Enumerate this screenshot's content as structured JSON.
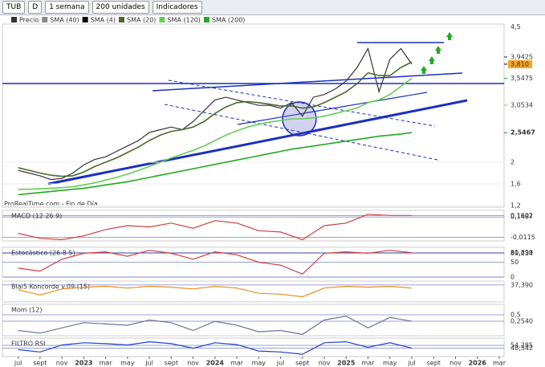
{
  "toolbar": {
    "symbol": "TUB",
    "period_type": "D",
    "period": "1 semana",
    "units": "200 unidades",
    "indicators": "Indicadores"
  },
  "chart_data": [
    {
      "type": "line",
      "source_note": "ProRealTime.com - Fin de Día",
      "legend_extra": [
        {
          "name": "SMA (40)",
          "color": "#888888"
        },
        {
          "name": "SMA (4)",
          "color": "#000000"
        }
      ],
      "x": [
        0,
        1,
        2,
        3,
        4,
        5,
        6,
        7,
        8,
        9,
        10,
        11,
        12,
        13,
        14,
        15,
        16,
        17,
        18,
        19,
        20,
        21,
        22,
        23,
        24,
        25,
        26,
        27,
        28,
        29,
        30,
        31,
        32,
        33,
        34,
        35,
        36
      ],
      "series": [
        {
          "name": "Precio",
          "color": "#333333",
          "values": [
            1.85,
            1.8,
            1.75,
            1.68,
            1.7,
            1.8,
            1.95,
            2.05,
            2.1,
            2.2,
            2.3,
            2.4,
            2.55,
            2.6,
            2.65,
            2.6,
            2.75,
            2.95,
            3.15,
            3.2,
            3.15,
            3.1,
            3.05,
            3.05,
            3.0,
            3.1,
            2.85,
            3.2,
            3.25,
            3.35,
            3.5,
            3.75,
            4.1,
            3.3,
            3.9,
            4.1,
            3.81
          ]
        },
        {
          "name": "SMA (20)",
          "color": "#4a6b2a",
          "values": [
            1.9,
            1.85,
            1.8,
            1.76,
            1.74,
            1.75,
            1.82,
            1.92,
            2.0,
            2.08,
            2.18,
            2.28,
            2.4,
            2.5,
            2.57,
            2.6,
            2.65,
            2.75,
            2.9,
            3.02,
            3.1,
            3.12,
            3.1,
            3.07,
            3.04,
            3.04,
            3.0,
            3.02,
            3.1,
            3.2,
            3.3,
            3.45,
            3.65,
            3.6,
            3.6,
            3.75,
            3.85
          ]
        },
        {
          "name": "SMA (120)",
          "color": "#66cc55",
          "values": [
            1.5,
            1.5,
            1.51,
            1.52,
            1.53,
            1.55,
            1.58,
            1.62,
            1.67,
            1.72,
            1.78,
            1.85,
            1.92,
            2.0,
            2.08,
            2.15,
            2.22,
            2.3,
            2.4,
            2.5,
            2.58,
            2.65,
            2.7,
            2.74,
            2.77,
            2.8,
            2.8,
            2.82,
            2.85,
            2.9,
            2.95,
            3.0,
            3.1,
            3.15,
            3.25,
            3.4,
            3.5475
          ]
        },
        {
          "name": "SMA (200)",
          "color": "#22aa22",
          "values": [
            1.4,
            1.42,
            1.44,
            1.46,
            1.48,
            1.5,
            1.52,
            1.55,
            1.58,
            1.61,
            1.64,
            1.68,
            1.72,
            1.76,
            1.8,
            1.84,
            1.88,
            1.92,
            1.96,
            2.0,
            2.04,
            2.08,
            2.12,
            2.16,
            2.2,
            2.24,
            2.27,
            2.3,
            2.33,
            2.36,
            2.39,
            2.42,
            2.45,
            2.48,
            2.5,
            2.52,
            2.5467
          ]
        }
      ],
      "xlim": [
        -1,
        44
      ],
      "xticks": [
        {
          "value": 0,
          "label": "jul"
        },
        {
          "value": 2,
          "label": "sept"
        },
        {
          "value": 4,
          "label": "nov"
        },
        {
          "value": 6,
          "label": "2023"
        },
        {
          "value": 8,
          "label": "mar"
        },
        {
          "value": 10,
          "label": "may"
        },
        {
          "value": 12,
          "label": "jul"
        },
        {
          "value": 14,
          "label": "sept"
        },
        {
          "value": 16,
          "label": "nov"
        },
        {
          "value": 18,
          "label": "2024"
        },
        {
          "value": 20,
          "label": "mar"
        },
        {
          "value": 22,
          "label": "may"
        },
        {
          "value": 24,
          "label": "jul"
        },
        {
          "value": 26,
          "label": "sept"
        },
        {
          "value": 28,
          "label": "nov"
        },
        {
          "value": 30,
          "label": "2025"
        },
        {
          "value": 32,
          "label": "mar"
        },
        {
          "value": 34,
          "label": "may"
        },
        {
          "value": 36,
          "label": "jul"
        },
        {
          "value": 38,
          "label": "sept"
        },
        {
          "value": 40,
          "label": "nov"
        },
        {
          "value": 42,
          "label": "2026"
        },
        {
          "value": 44,
          "label": "mar"
        }
      ],
      "ylim": [
        1.17,
        4.55
      ],
      "yticks": [
        {
          "value": 4.5,
          "label": "4,5"
        },
        2,
        {
          "value": 1.6,
          "label": "1,6"
        },
        {
          "value": 1.2,
          "label": "1,2"
        }
      ],
      "markers": [
        {
          "value": 3.9425,
          "label": "3,9425",
          "color": "#222222"
        },
        {
          "value": 3.81,
          "label": "3,810",
          "color": "#000000"
        },
        {
          "value": 3.5475,
          "label": "3,5475",
          "color": "#22aa22"
        },
        {
          "value": 3.0534,
          "label": "3,0534",
          "color": "#66cc55"
        },
        {
          "value": 2.5467,
          "label": "2,5467",
          "color": "#118811"
        }
      ]
    },
    {
      "type": "line",
      "title": "MACD (12 26 9)",
      "x": [
        0,
        2,
        4,
        6,
        8,
        10,
        12,
        14,
        16,
        18,
        20,
        22,
        24,
        26,
        28,
        30,
        32,
        34,
        36
      ],
      "series": [
        {
          "name": "MACD",
          "color": "#d04040",
          "values": [
            0.02,
            -0.02,
            -0.03,
            0.0,
            0.05,
            0.08,
            0.07,
            0.1,
            0.06,
            0.12,
            0.1,
            0.04,
            0.03,
            -0.03,
            0.08,
            0.1,
            0.17,
            0.16,
            0.16
          ]
        }
      ],
      "ylim": [
        -0.04,
        0.2
      ],
      "yticks": [
        {
          "value": 0.1602,
          "label": "0,1602"
        },
        {
          "value": 0.1487,
          "label": "0,1487"
        },
        {
          "value": -0.0115,
          "label": "-0,0115"
        }
      ]
    },
    {
      "type": "line",
      "title": "Estocástico (26 8 5)",
      "x": [
        0,
        2,
        4,
        6,
        8,
        10,
        12,
        14,
        16,
        18,
        20,
        22,
        24,
        26,
        28,
        30,
        32,
        34,
        36
      ],
      "series": [
        {
          "name": "Estocástico",
          "color": "#d04040",
          "values": [
            30,
            20,
            60,
            80,
            85,
            70,
            90,
            80,
            60,
            85,
            75,
            50,
            40,
            10,
            80,
            85,
            80,
            90,
            82
          ]
        }
      ],
      "ylim": [
        0,
        100
      ],
      "yticks": [
        {
          "value": 81.899,
          "label": "81,899"
        },
        {
          "value": 80.234,
          "label": "80,234"
        },
        50,
        0
      ]
    },
    {
      "type": "line",
      "title": "Blai5 Koncorde v.09 (15)",
      "x": [
        0,
        2,
        4,
        6,
        8,
        10,
        12,
        14,
        16,
        18,
        20,
        22,
        24,
        26,
        28,
        30,
        32,
        34,
        36
      ],
      "series": [
        {
          "name": "Koncorde",
          "color": "#f08c20",
          "values": [
            10,
            -20,
            15,
            25,
            30,
            20,
            30,
            25,
            15,
            30,
            20,
            -10,
            -15,
            -30,
            20,
            30,
            25,
            30,
            20
          ]
        }
      ],
      "ylim": [
        -60,
        60
      ],
      "yticks": [
        {
          "value": 37.39,
          "label": "37,390"
        }
      ]
    },
    {
      "type": "line",
      "title": "Mom (12)",
      "x": [
        0,
        2,
        4,
        6,
        8,
        10,
        12,
        14,
        16,
        18,
        20,
        22,
        24,
        26,
        28,
        30,
        32,
        34,
        36
      ],
      "series": [
        {
          "name": "Mom",
          "color": "#7070a0",
          "values": [
            -0.1,
            -0.2,
            0.0,
            0.2,
            0.15,
            0.1,
            0.3,
            0.2,
            -0.1,
            0.25,
            0.1,
            -0.15,
            -0.1,
            -0.25,
            0.3,
            0.45,
            0.0,
            0.4,
            0.254
          ]
        }
      ],
      "ylim": [
        -0.3,
        0.9
      ],
      "yticks": [
        {
          "value": 0.5,
          "label": "0,5"
        },
        {
          "value": 0.254,
          "label": "0,2540"
        }
      ]
    },
    {
      "type": "line",
      "title": "FILTRO RSI",
      "x": [
        0,
        2,
        4,
        6,
        8,
        10,
        12,
        14,
        16,
        18,
        20,
        22,
        24,
        26,
        28,
        30,
        32,
        34,
        36
      ],
      "series": [
        {
          "name": "RSI",
          "color": "#2040d0",
          "values": [
            45,
            40,
            55,
            60,
            58,
            55,
            62,
            58,
            48,
            60,
            56,
            42,
            40,
            35,
            60,
            62,
            50,
            60,
            48.342
          ]
        }
      ],
      "ylim": [
        30,
        70
      ],
      "yticks": [
        {
          "value": 54.285,
          "label": "54,285"
        },
        {
          "value": 48.342,
          "label": "48,342"
        }
      ]
    }
  ]
}
